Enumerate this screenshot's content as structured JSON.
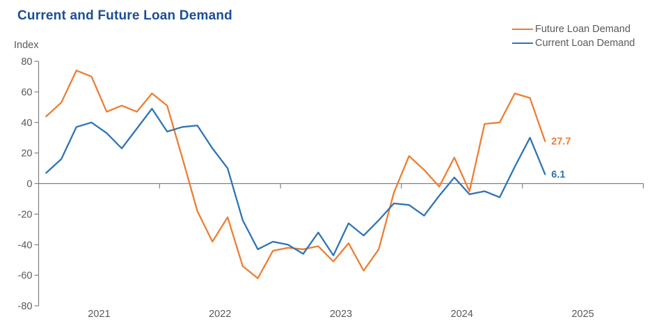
{
  "title": "Current and Future Loan Demand",
  "y_axis_unit": "Index",
  "legend": [
    {
      "label": "Future Loan Demand",
      "color": "#ED7D31"
    },
    {
      "label": "Current Loan Demand",
      "color": "#2E74B5"
    }
  ],
  "colors": {
    "title": "#1C4E94",
    "axis": "#808080",
    "tick_text": "#595959",
    "future_series": "#ED7D31",
    "current_series": "#2E74B5"
  },
  "chart_data": {
    "type": "line",
    "title": "Current and Future Loan Demand",
    "ylabel": "Index",
    "ylim": [
      -80,
      80
    ],
    "y_ticks": [
      "80",
      "60",
      "40",
      "20",
      "0",
      "-20",
      "-40",
      "-60",
      "-80"
    ],
    "xlim": [
      2021,
      2026
    ],
    "x_ticks": [
      "2021",
      "2022",
      "2023",
      "2024",
      "2025"
    ],
    "grid": "zero-line-only",
    "legend_position": "top-right",
    "x": [
      2021.0625,
      2021.1875,
      2021.3125,
      2021.4375,
      2021.5625,
      2021.6875,
      2021.8125,
      2021.9375,
      2022.0625,
      2022.1875,
      2022.3125,
      2022.4375,
      2022.5625,
      2022.6875,
      2022.8125,
      2022.9375,
      2023.0625,
      2023.1875,
      2023.3125,
      2023.4375,
      2023.5625,
      2023.6875,
      2023.8125,
      2023.9375,
      2024.0625,
      2024.1875,
      2024.3125,
      2024.4375,
      2024.5625,
      2024.6875,
      2024.8125,
      2024.9375,
      2025.0625,
      2025.1875
    ],
    "series": [
      {
        "name": "Future Loan Demand",
        "color": "#ED7D31",
        "end_label": "27.7",
        "values": [
          44,
          53,
          74,
          70,
          47,
          51,
          47,
          59,
          51,
          17,
          -18,
          -38,
          -22,
          -54,
          -62,
          -44,
          -42,
          -43,
          -41,
          -51,
          -39,
          -57,
          -43,
          -6,
          18,
          9,
          -2,
          17,
          -5,
          39,
          40,
          59,
          56,
          27.7
        ]
      },
      {
        "name": "Current Loan Demand",
        "color": "#2E74B5",
        "end_label": "6.1",
        "values": [
          7,
          16,
          37,
          40,
          33,
          23,
          36,
          49,
          34,
          37,
          38,
          23,
          10,
          -24,
          -43,
          -38,
          -40,
          -46,
          -32,
          -47,
          -26,
          -34,
          -24,
          -13,
          -14,
          -21,
          -8,
          4,
          -7,
          -5,
          -9,
          11,
          30,
          6.1
        ]
      }
    ]
  }
}
